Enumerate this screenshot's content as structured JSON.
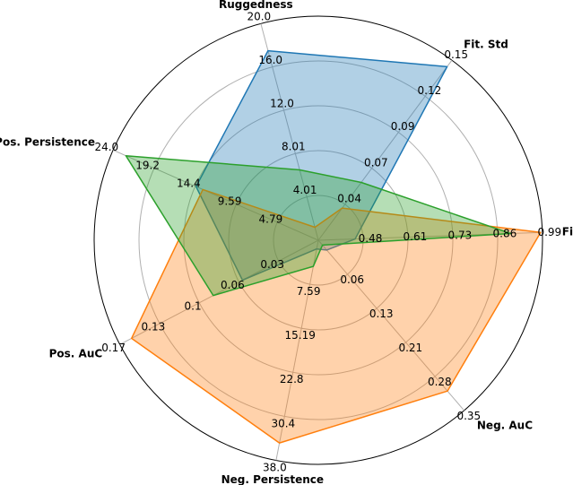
{
  "chart_data": {
    "type": "radar",
    "axes": [
      {
        "name": "Fit. Avg.",
        "ticks": [
          "0.48",
          "0.61",
          "0.73",
          "0.86",
          "0.99"
        ],
        "range": [
          0.35,
          0.99
        ]
      },
      {
        "name": "Fit. Std",
        "ticks": [
          "0.04",
          "0.07",
          "0.09",
          "0.12",
          "0.15"
        ],
        "range": [
          0.01,
          0.15
        ]
      },
      {
        "name": "Ruggedness",
        "ticks": [
          "4.01",
          "8.01",
          "12.0",
          "16.0",
          "20.0"
        ],
        "range": [
          0.0,
          20.0
        ]
      },
      {
        "name": "Pos. Persistence",
        "ticks": [
          "4.79",
          "9.59",
          "14.4",
          "19.2",
          "24.0"
        ],
        "range": [
          0.0,
          24.0
        ]
      },
      {
        "name": "Pos. AuC",
        "ticks": [
          "0.03",
          "0.06",
          "0.1",
          "0.13",
          "0.17"
        ],
        "range": [
          0.0,
          0.17
        ]
      },
      {
        "name": "Neg. Persistence",
        "ticks": [
          "7.59",
          "15.19",
          "22.8",
          "30.4",
          "38.0"
        ],
        "range": [
          0.0,
          38.0
        ]
      },
      {
        "name": "Neg. AuC",
        "ticks": [
          "0.06",
          "0.13",
          "0.21",
          "0.28",
          "0.35"
        ],
        "range": [
          0.0,
          0.35
        ]
      }
    ],
    "series": [
      {
        "color": "#1f77b4",
        "fill": "#1f77b4",
        "values": [
          0.455,
          0.145,
          17.5,
          14.3,
          0.065,
          1.5,
          0.02
        ]
      },
      {
        "color": "#ff7f0e",
        "fill": "#ff7f0e",
        "values": [
          0.985,
          0.035,
          1.2,
          13.5,
          0.16,
          35.0,
          0.31
        ]
      },
      {
        "color": "#2ca02c",
        "fill": "#2ca02c",
        "values": [
          0.9,
          0.055,
          6.5,
          22.5,
          0.09,
          4.5,
          0.01
        ]
      }
    ],
    "grid": true
  }
}
